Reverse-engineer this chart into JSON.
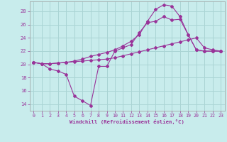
{
  "xlabel": "Windchill (Refroidissement éolien,°C)",
  "bg_color": "#c8ecec",
  "grid_color": "#aad4d4",
  "line_color": "#993399",
  "xlim": [
    -0.5,
    23.5
  ],
  "ylim": [
    13.0,
    29.5
  ],
  "xticks": [
    0,
    1,
    2,
    3,
    4,
    5,
    6,
    7,
    8,
    9,
    10,
    11,
    12,
    13,
    14,
    15,
    16,
    17,
    18,
    19,
    20,
    21,
    22,
    23
  ],
  "yticks": [
    14,
    16,
    18,
    20,
    22,
    24,
    26,
    28
  ],
  "line1_x": [
    0,
    1,
    2,
    3,
    4,
    5,
    6,
    7,
    8,
    9,
    10,
    11,
    12,
    13,
    14,
    15,
    16,
    17,
    18,
    19,
    20,
    21,
    22,
    23
  ],
  "line1_y": [
    20.3,
    20.1,
    19.3,
    19.0,
    18.5,
    15.2,
    14.5,
    13.8,
    19.7,
    19.7,
    22.0,
    22.5,
    23.0,
    24.8,
    26.3,
    26.5,
    27.2,
    26.7,
    26.8,
    24.5,
    22.2,
    22.0,
    22.0,
    22.0
  ],
  "line2_x": [
    0,
    1,
    2,
    3,
    4,
    5,
    6,
    7,
    8,
    9,
    10,
    11,
    12,
    13,
    14,
    15,
    16,
    17,
    18,
    19,
    20,
    21,
    22,
    23
  ],
  "line2_y": [
    20.3,
    20.1,
    20.1,
    20.2,
    20.3,
    20.4,
    20.5,
    20.6,
    20.7,
    20.8,
    21.0,
    21.3,
    21.6,
    21.9,
    22.2,
    22.5,
    22.8,
    23.1,
    23.4,
    23.7,
    24.0,
    22.5,
    22.2,
    22.0
  ],
  "line3_x": [
    0,
    1,
    2,
    3,
    4,
    5,
    6,
    7,
    8,
    9,
    10,
    11,
    12,
    13,
    14,
    15,
    16,
    17,
    18,
    19,
    20,
    21,
    22,
    23
  ],
  "line3_y": [
    20.3,
    20.1,
    20.1,
    20.2,
    20.3,
    20.5,
    20.8,
    21.2,
    21.5,
    21.8,
    22.2,
    22.8,
    23.5,
    24.5,
    26.5,
    28.3,
    29.0,
    28.8,
    27.2,
    24.5,
    22.2,
    22.0,
    22.0,
    22.0
  ],
  "xlabel_fontsize": 5.2,
  "tick_fontsize": 4.8
}
